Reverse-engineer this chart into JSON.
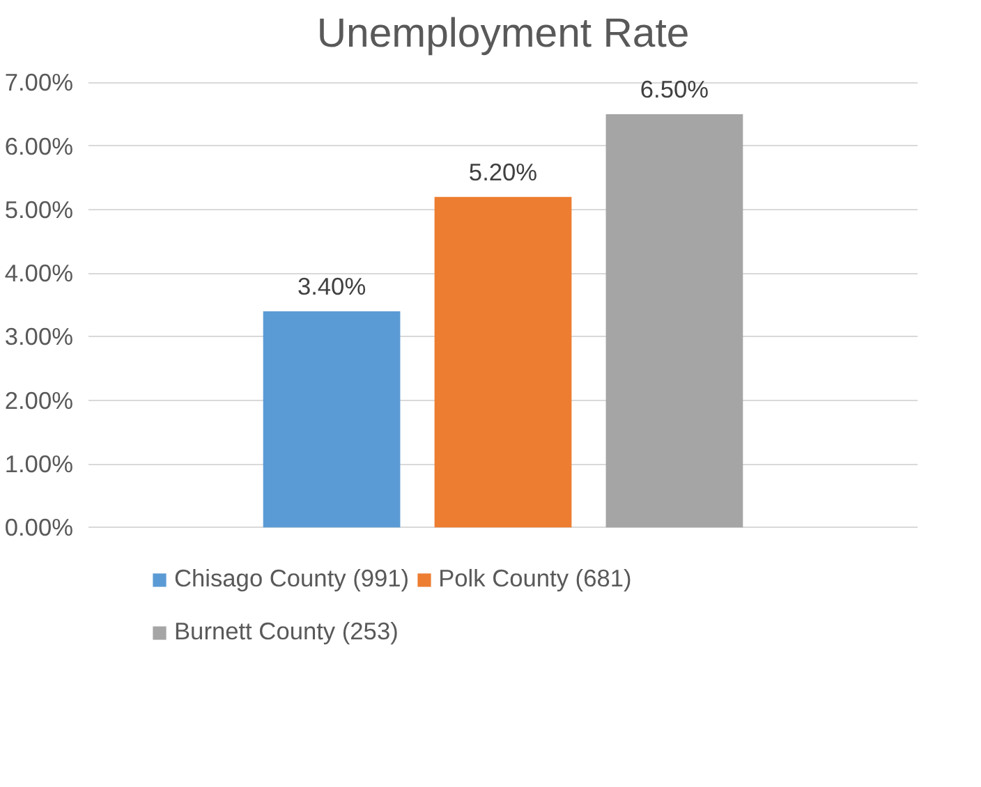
{
  "chart_data": {
    "type": "bar",
    "title": "Unemployment Rate",
    "categories": [
      null
    ],
    "series": [
      {
        "name": "Chisago County (991)",
        "color": "#5b9bd5",
        "values": [
          3.4
        ],
        "value_labels": [
          "3.40%"
        ]
      },
      {
        "name": "Polk County (681)",
        "color": "#ed7d31",
        "values": [
          5.2
        ],
        "value_labels": [
          "5.20%"
        ]
      },
      {
        "name": "Burnett County (253)",
        "color": "#a5a5a5",
        "values": [
          6.5
        ],
        "value_labels": [
          "6.50%"
        ]
      }
    ],
    "ylim": [
      0,
      7
    ],
    "yticks": [
      {
        "value": 0,
        "label": "0.00%"
      },
      {
        "value": 1,
        "label": "1.00%"
      },
      {
        "value": 2,
        "label": "2.00%"
      },
      {
        "value": 3,
        "label": "3.00%"
      },
      {
        "value": 4,
        "label": "4.00%"
      },
      {
        "value": 5,
        "label": "5.00%"
      },
      {
        "value": 6,
        "label": "6.00%"
      },
      {
        "value": 7,
        "label": "7.00%"
      }
    ],
    "grid": "y",
    "legend": "bottom",
    "tick_labels": "y"
  }
}
